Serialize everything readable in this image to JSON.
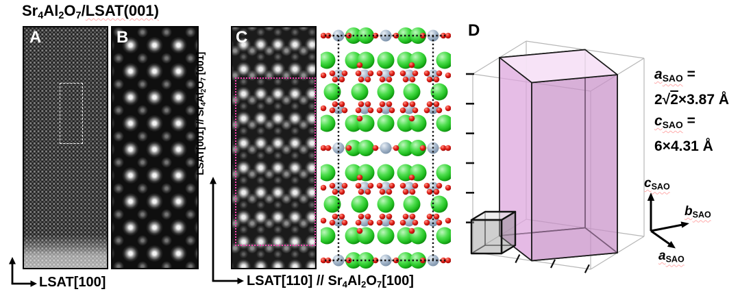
{
  "colors": {
    "magenta_box": "#f33fae",
    "dashed_box_white": "#ffffff",
    "sr_atom_green": "#22c022",
    "al_atom_bluegray": "#a4b6ca",
    "o_atom_red": "#df1d14",
    "sao_cell_purple": "#c88fc8",
    "sao_cell_top_pink": "#f8e4f8",
    "perovskite_cube_gray": "#9e9e9e",
    "supercell_wireframe_gray": "#b7b7b7",
    "line_black": "#111111",
    "pale_bond_pink": "#f3cabe"
  },
  "title": [
    {
      "t": "Sr"
    },
    {
      "t": "4",
      "sub": true
    },
    {
      "t": "Al"
    },
    {
      "t": "2",
      "sub": true
    },
    {
      "t": "O"
    },
    {
      "t": "7",
      "sub": true
    },
    {
      "t": "/"
    },
    {
      "t": "LSAT(001)",
      "wavy": true
    }
  ],
  "panels": {
    "a_label": "A",
    "b_label": "B",
    "c_label": "C",
    "d_label": "D"
  },
  "axis_labels": {
    "a_vertical": [
      {
        "t": "LSAT[001]"
      }
    ],
    "a_horizontal": [
      {
        "t": "LSAT[100]"
      }
    ],
    "c_vertical": [
      {
        "t": "LSAT[001] // Sr"
      },
      {
        "t": "4",
        "sub": true
      },
      {
        "t": "Al"
      },
      {
        "t": "2",
        "sub": true
      },
      {
        "t": "O"
      },
      {
        "t": "7",
        "sub": true
      },
      {
        "t": " [001]"
      }
    ],
    "c_horizontal": [
      {
        "t": "LSAT[110] // Sr"
      },
      {
        "t": "4",
        "sub": true
      },
      {
        "t": "Al"
      },
      {
        "t": "2",
        "sub": true
      },
      {
        "t": "O"
      },
      {
        "t": "7",
        "sub": true
      },
      {
        "t": "[100]"
      }
    ]
  },
  "panel_d": {
    "a_lattice_label": [
      {
        "t": "a",
        "i": true,
        "wavy": true
      },
      {
        "t": "SAO",
        "sub": true,
        "wavy": true
      },
      {
        "t": " ="
      }
    ],
    "a_lattice_value": [
      {
        "t": "2√"
      },
      {
        "t": "2",
        "ov": true
      },
      {
        "t": "×3.87 Å"
      }
    ],
    "c_lattice_label": [
      {
        "t": "c",
        "i": true,
        "wavy": true
      },
      {
        "t": "SAO",
        "sub": true,
        "wavy": true
      },
      {
        "t": " ="
      }
    ],
    "c_lattice_value": [
      {
        "t": "6×4.31 Å"
      }
    ],
    "axis_c": [
      {
        "t": "c",
        "i": true,
        "wavy": true
      },
      {
        "t": "SAO",
        "sub": true,
        "wavy": true
      }
    ],
    "axis_b": [
      {
        "t": "b",
        "i": true,
        "wavy": true
      },
      {
        "t": "SAO",
        "sub": true,
        "wavy": true
      }
    ],
    "axis_a": [
      {
        "t": "a",
        "i": true,
        "wavy": true
      },
      {
        "t": "SAO",
        "sub": true,
        "wavy": true
      }
    ]
  }
}
